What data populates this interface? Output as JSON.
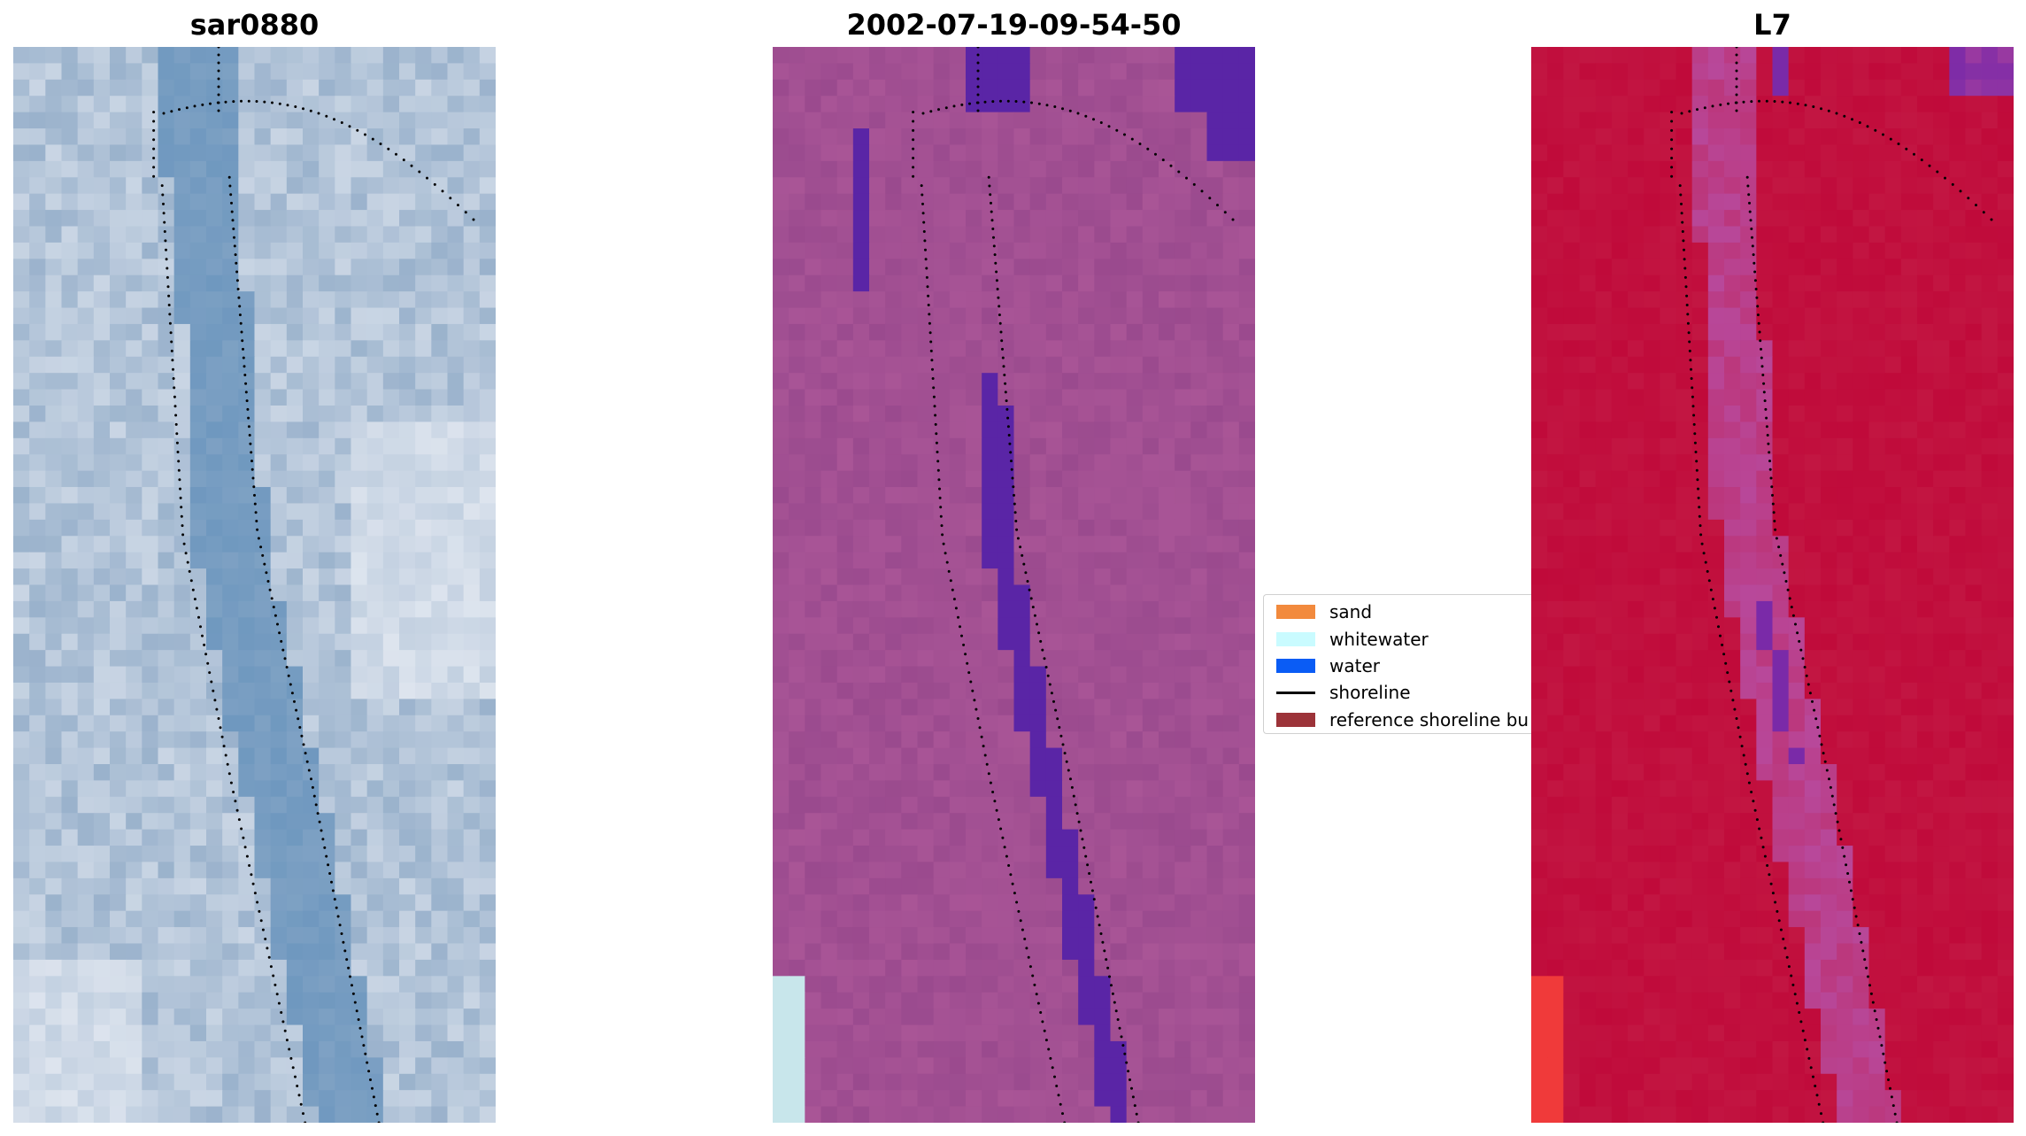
{
  "panels": [
    {
      "id": "rgb",
      "title": "sar0880"
    },
    {
      "id": "class",
      "title": "2002-07-19-09-54-50"
    },
    {
      "id": "ndwi",
      "title": "L7"
    }
  ],
  "legend": {
    "items": [
      {
        "label": "sand",
        "color": "#f28a3d",
        "kind": "patch"
      },
      {
        "label": "whitewater",
        "color": "#c9fbff",
        "kind": "patch"
      },
      {
        "label": "water",
        "color": "#0a5cf5",
        "kind": "patch"
      },
      {
        "label": "shoreline",
        "color": "#000000",
        "kind": "line"
      },
      {
        "label": "reference shoreline bu",
        "color": "#9c3339",
        "kind": "patch"
      }
    ]
  },
  "colors": {
    "rgb_base": "#9ab2cc",
    "rgb_light": "#dde4ee",
    "rgb_dark": "#6f98bf",
    "class_base": "#9a4a8e",
    "class_light": "#b35c9c",
    "class_water": "#5a25a6",
    "ndwi_base": "#c21642",
    "ndwi_dark": "#c00a3a",
    "ndwi_channel": "#b8489a",
    "ndwi_purple": "#7a2aa8",
    "ndwi_bright": "#f03a3a",
    "dots": "#000000"
  }
}
